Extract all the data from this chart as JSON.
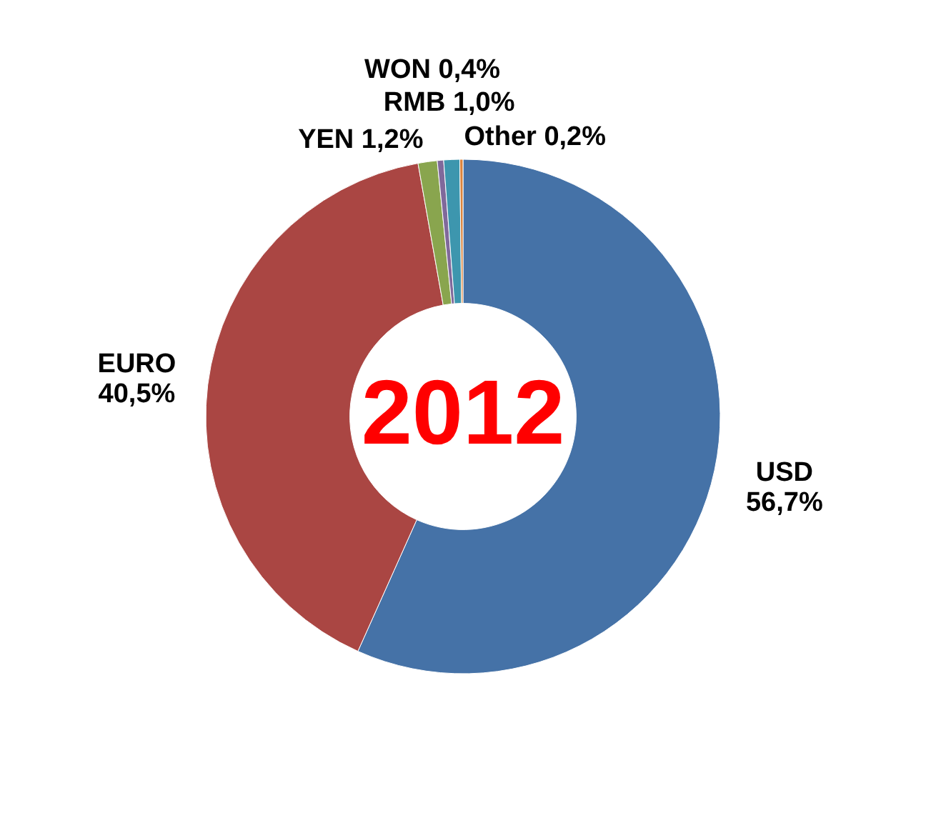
{
  "chart_data": {
    "type": "donut",
    "title": "2012",
    "categories": [
      "USD",
      "EURO",
      "YEN",
      "WON",
      "RMB",
      "Other"
    ],
    "values": [
      56.7,
      40.5,
      1.2,
      0.4,
      1.0,
      0.2
    ],
    "colors": [
      "#4572a7",
      "#aa4643",
      "#89a54e",
      "#80699b",
      "#3d96ae",
      "#db843d"
    ],
    "value_labels": [
      "56,7%",
      "40,5%",
      "1,2%",
      "0,4%",
      "1,0%",
      "0,2%"
    ]
  }
}
